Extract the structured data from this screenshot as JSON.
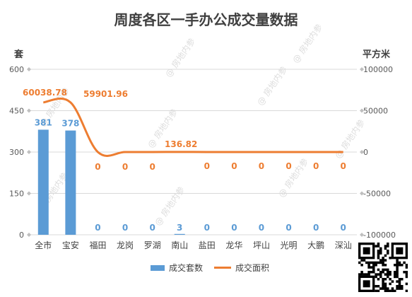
{
  "title": "周度各区一手办公成交量数据",
  "left_unit": "套",
  "right_unit": "平方米",
  "watermark_text": "@ 房地内参",
  "colors": {
    "bar": "#5b9bd5",
    "line": "#ed7d31",
    "grid": "#d9d9d9",
    "text": "#595959"
  },
  "chart_data": {
    "type": "bar",
    "title": "周度各区一手办公成交量数据",
    "categories": [
      "全市",
      "宝安",
      "福田",
      "龙岗",
      "罗湖",
      "南山",
      "盐田",
      "龙华",
      "坪山",
      "光明",
      "大鹏",
      "深汕"
    ],
    "series": [
      {
        "name": "成交套数",
        "type": "bar",
        "axis": "left",
        "values": [
          381,
          378,
          0,
          0,
          0,
          3,
          0,
          0,
          0,
          0,
          0,
          0
        ],
        "labels": [
          "381",
          "378",
          "0",
          "0",
          "0",
          "3",
          "0",
          "0",
          "0",
          "0",
          "0",
          "0"
        ]
      },
      {
        "name": "成交面积",
        "type": "line",
        "axis": "right",
        "values": [
          60038.78,
          59901.96,
          0,
          0,
          0,
          136.82,
          0,
          0,
          0,
          0,
          0,
          0
        ],
        "labels": [
          "60038.78",
          "59901.96",
          "0",
          "0",
          "0",
          "136.82",
          "0",
          "0",
          "0",
          "0",
          "0",
          "0"
        ]
      }
    ],
    "y_left": {
      "label": "套",
      "ylim": [
        0,
        600
      ],
      "ticks": [
        0,
        150,
        300,
        450,
        600
      ]
    },
    "y_right": {
      "label": "平方米",
      "ylim": [
        -100000,
        100000
      ],
      "ticks": [
        -100000,
        -50000,
        0,
        50000,
        100000
      ]
    },
    "legend": {
      "position": "bottom",
      "entries": [
        "成交套数",
        "成交面积"
      ]
    },
    "grid": true
  }
}
